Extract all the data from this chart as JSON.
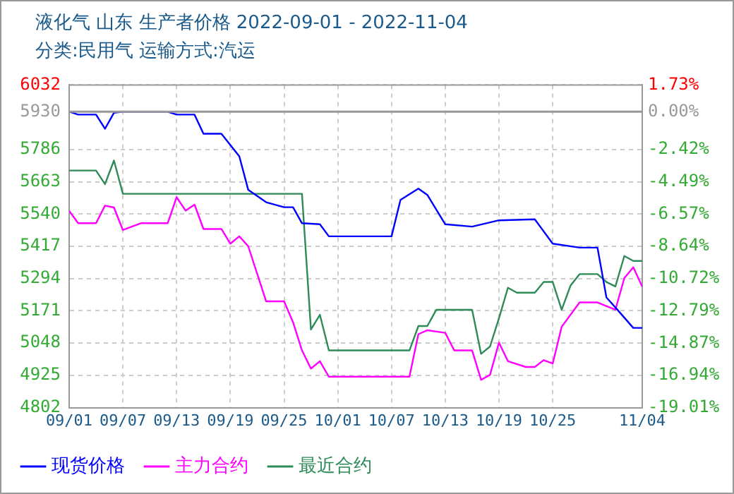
{
  "chart_data": {
    "type": "line",
    "title": "液化气 山东 生产者价格 2022-09-01 - 2022-11-04",
    "subtitle": "分类:民用气 运输方式:汽运",
    "xlim": [
      "2022-09-01",
      "2022-11-04"
    ],
    "xticks": [
      {
        "value": "2022-09-01",
        "label": "09/01"
      },
      {
        "value": "2022-09-07",
        "label": "09/07"
      },
      {
        "value": "2022-09-13",
        "label": "09/13"
      },
      {
        "value": "2022-09-19",
        "label": "09/19"
      },
      {
        "value": "2022-09-25",
        "label": "09/25"
      },
      {
        "value": "2022-10-01",
        "label": "10/01"
      },
      {
        "value": "2022-10-07",
        "label": "10/07"
      },
      {
        "value": "2022-10-13",
        "label": "10/13"
      },
      {
        "value": "2022-10-19",
        "label": "10/19"
      },
      {
        "value": "2022-10-25",
        "label": "10/25"
      },
      {
        "value": "2022-11-04",
        "label": "11/04"
      }
    ],
    "ylim": [
      4802,
      6032
    ],
    "yticks": [
      4802,
      4925,
      5048,
      5171,
      5294,
      5417,
      5540,
      5663,
      5786,
      5930,
      6032
    ],
    "y2lim": [
      -19.01,
      1.73
    ],
    "y2ticks": [
      {
        "value": -19.01,
        "label": "-19.01%"
      },
      {
        "value": -16.94,
        "label": "-16.94%"
      },
      {
        "value": -14.87,
        "label": "-14.87%"
      },
      {
        "value": -12.79,
        "label": "-12.79%"
      },
      {
        "value": -10.72,
        "label": "-10.72%"
      },
      {
        "value": -8.64,
        "label": "-8.64%"
      },
      {
        "value": -6.57,
        "label": "-6.57%"
      },
      {
        "value": -4.49,
        "label": "-4.49%"
      },
      {
        "value": -2.42,
        "label": "-2.42%"
      },
      {
        "value": 0,
        "label": "0.00%"
      },
      {
        "value": 1.73,
        "label": "1.73%"
      }
    ],
    "ref_lines": [
      {
        "axis": "y",
        "value": 5930,
        "color": "#999999"
      }
    ],
    "grid": true,
    "legend": "bottom",
    "marker": "none",
    "line_style": "solid",
    "series": [
      {
        "name": "现货价格",
        "color": "#0000ff",
        "x": [
          "2022-09-01",
          "2022-09-02",
          "2022-09-04",
          "2022-09-05",
          "2022-09-06",
          "2022-09-07",
          "2022-09-12",
          "2022-09-13",
          "2022-09-15",
          "2022-09-16",
          "2022-09-18",
          "2022-09-20",
          "2022-09-21",
          "2022-09-23",
          "2022-09-25",
          "2022-09-26",
          "2022-09-27",
          "2022-09-29",
          "2022-09-30",
          "2022-10-07",
          "2022-10-08",
          "2022-10-10",
          "2022-10-11",
          "2022-10-13",
          "2022-10-16",
          "2022-10-19",
          "2022-10-23",
          "2022-10-25",
          "2022-10-28",
          "2022-10-30",
          "2022-10-31",
          "2022-11-01",
          "2022-11-03",
          "2022-11-04"
        ],
        "values": [
          5930,
          5919,
          5919,
          5865,
          5926,
          5930,
          5930,
          5919,
          5919,
          5846,
          5846,
          5760,
          5632,
          5585,
          5566,
          5566,
          5505,
          5501,
          5455,
          5455,
          5594,
          5637,
          5613,
          5501,
          5492,
          5516,
          5520,
          5427,
          5412,
          5412,
          5222,
          5184,
          5106,
          5106
        ]
      },
      {
        "name": "主力合约",
        "color": "#ff00ff",
        "x": [
          "2022-09-01",
          "2022-09-02",
          "2022-09-04",
          "2022-09-05",
          "2022-09-06",
          "2022-09-07",
          "2022-09-09",
          "2022-09-12",
          "2022-09-13",
          "2022-09-14",
          "2022-09-15",
          "2022-09-16",
          "2022-09-18",
          "2022-09-19",
          "2022-09-20",
          "2022-09-21",
          "2022-09-23",
          "2022-09-25",
          "2022-09-26",
          "2022-09-27",
          "2022-09-28",
          "2022-09-29",
          "2022-09-30",
          "2022-10-09",
          "2022-10-10",
          "2022-10-11",
          "2022-10-13",
          "2022-10-14",
          "2022-10-16",
          "2022-10-17",
          "2022-10-18",
          "2022-10-19",
          "2022-10-20",
          "2022-10-22",
          "2022-10-23",
          "2022-10-24",
          "2022-10-25",
          "2022-10-26",
          "2022-10-28",
          "2022-10-30",
          "2022-11-01",
          "2022-11-02",
          "2022-11-03",
          "2022-11-04"
        ],
        "values": [
          5552,
          5505,
          5505,
          5572,
          5565,
          5479,
          5505,
          5505,
          5604,
          5553,
          5576,
          5483,
          5483,
          5427,
          5455,
          5417,
          5207,
          5207,
          5128,
          5020,
          4951,
          4979,
          4920,
          4920,
          5082,
          5097,
          5087,
          5020,
          5020,
          4908,
          4927,
          5050,
          4979,
          4957,
          4957,
          4983,
          4970,
          5110,
          5203,
          5203,
          5175,
          5296,
          5337,
          5263
        ]
      },
      {
        "name": "最近合约",
        "color": "#2e8b57",
        "x": [
          "2022-09-01",
          "2022-09-04",
          "2022-09-05",
          "2022-09-06",
          "2022-09-07",
          "2022-09-27",
          "2022-09-28",
          "2022-09-29",
          "2022-09-30",
          "2022-10-09",
          "2022-10-10",
          "2022-10-11",
          "2022-10-12",
          "2022-10-16",
          "2022-10-17",
          "2022-10-18",
          "2022-10-19",
          "2022-10-20",
          "2022-10-21",
          "2022-10-23",
          "2022-10-24",
          "2022-10-25",
          "2022-10-26",
          "2022-10-27",
          "2022-10-28",
          "2022-10-30",
          "2022-10-31",
          "2022-11-01",
          "2022-11-02",
          "2022-11-03",
          "2022-11-04"
        ],
        "values": [
          5706,
          5706,
          5654,
          5744,
          5617,
          5617,
          5100,
          5156,
          5020,
          5020,
          5113,
          5113,
          5175,
          5175,
          5007,
          5035,
          5143,
          5259,
          5240,
          5240,
          5281,
          5281,
          5175,
          5268,
          5311,
          5311,
          5281,
          5264,
          5380,
          5361,
          5361
        ]
      }
    ]
  }
}
